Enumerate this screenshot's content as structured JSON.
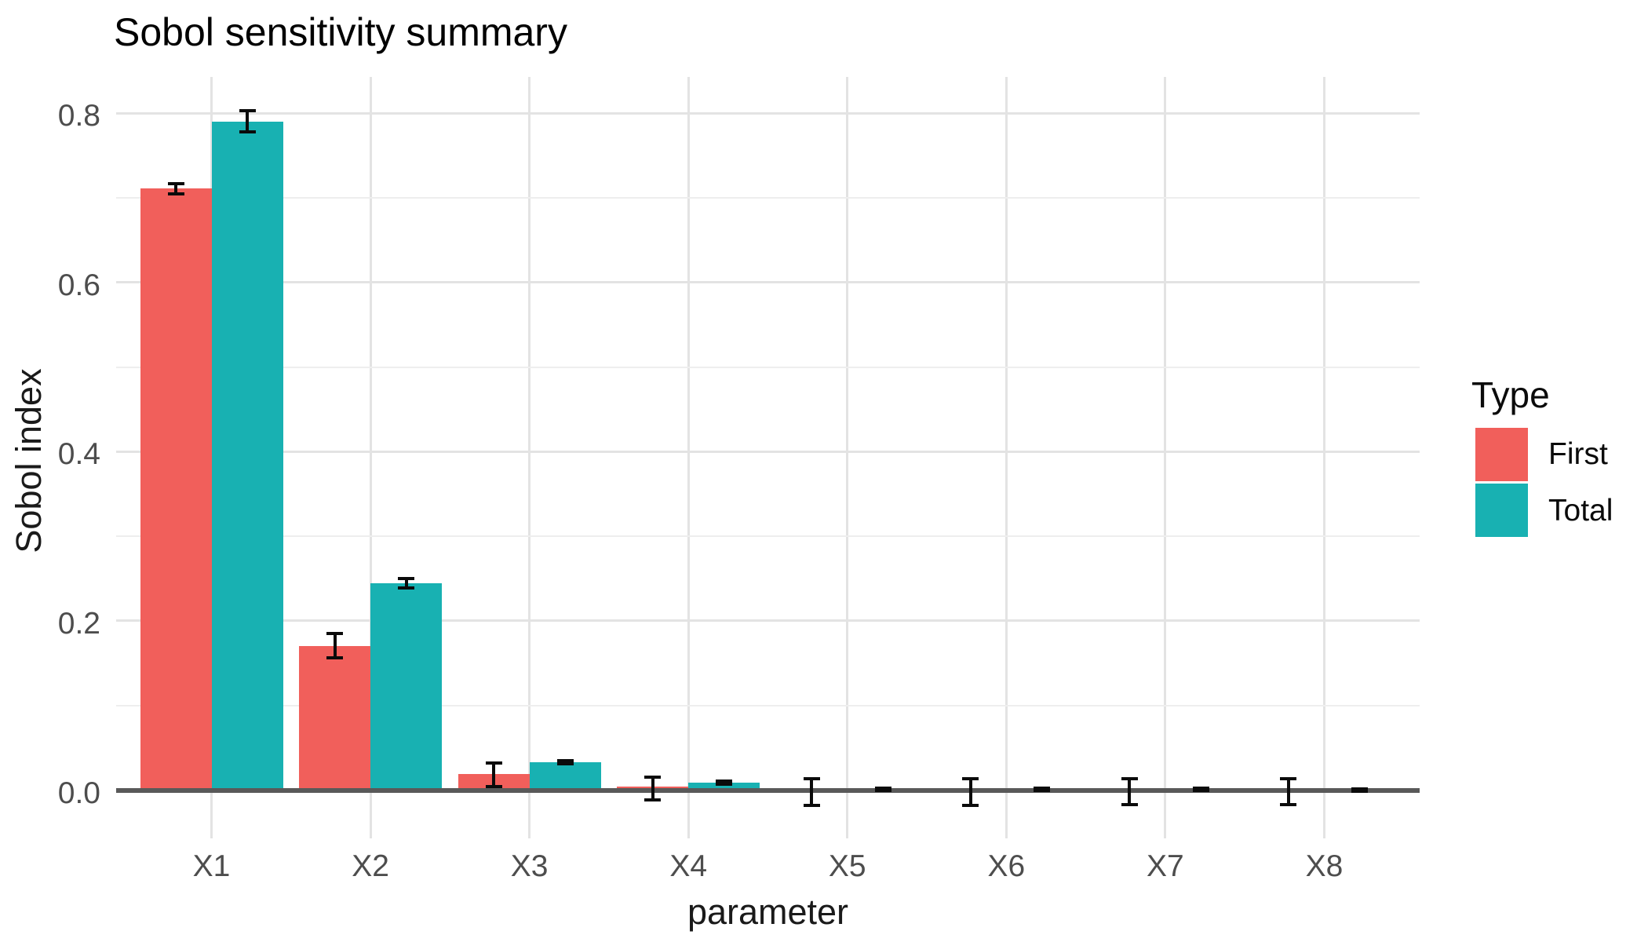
{
  "chart_data": {
    "type": "bar",
    "title": "Sobol sensitivity summary",
    "xlabel": "parameter",
    "ylabel": "Sobol index",
    "categories": [
      "X1",
      "X2",
      "X3",
      "X4",
      "X5",
      "X6",
      "X7",
      "X8"
    ],
    "series": [
      {
        "name": "First",
        "color": "#f15f5b",
        "values": [
          0.711,
          0.17,
          0.019,
          0.004,
          0.0,
          0.0,
          0.0,
          0.0
        ],
        "error_low": [
          0.705,
          0.156,
          0.004,
          -0.012,
          -0.018,
          -0.018,
          -0.017,
          -0.017
        ],
        "error_high": [
          0.717,
          0.185,
          0.032,
          0.015,
          0.013,
          0.013,
          0.013,
          0.013
        ]
      },
      {
        "name": "Total",
        "color": "#18b1b2",
        "values": [
          0.79,
          0.244,
          0.033,
          0.009,
          0.001,
          0.001,
          0.001,
          0.0
        ],
        "error_low": [
          0.778,
          0.239,
          0.031,
          0.007,
          0.0,
          0.0,
          0.0,
          -0.001
        ],
        "error_high": [
          0.803,
          0.25,
          0.035,
          0.011,
          0.002,
          0.002,
          0.002,
          0.001
        ]
      }
    ],
    "y_ticks": [
      0.0,
      0.2,
      0.4,
      0.6,
      0.8
    ],
    "y_tick_labels": [
      "0.0",
      "0.2",
      "0.4",
      "0.6",
      "0.8"
    ],
    "y_minor_ticks": [
      0.1,
      0.3,
      0.5,
      0.7
    ],
    "ylim": [
      -0.057,
      0.843
    ],
    "grid": true,
    "error_bars": true,
    "legend": {
      "title": "Type",
      "position": "right",
      "entries": [
        {
          "label": "First",
          "color": "#f15f5b"
        },
        {
          "label": "Total",
          "color": "#18b1b2"
        }
      ]
    },
    "colors": {
      "background": "#ffffff",
      "grid_major": "#e3e3e3",
      "grid_minor": "#eeeeee",
      "zero_line": "#595959",
      "error_bar": "#0b0b0b",
      "tick_label": "#4d4d4d",
      "text": "#000000"
    }
  }
}
